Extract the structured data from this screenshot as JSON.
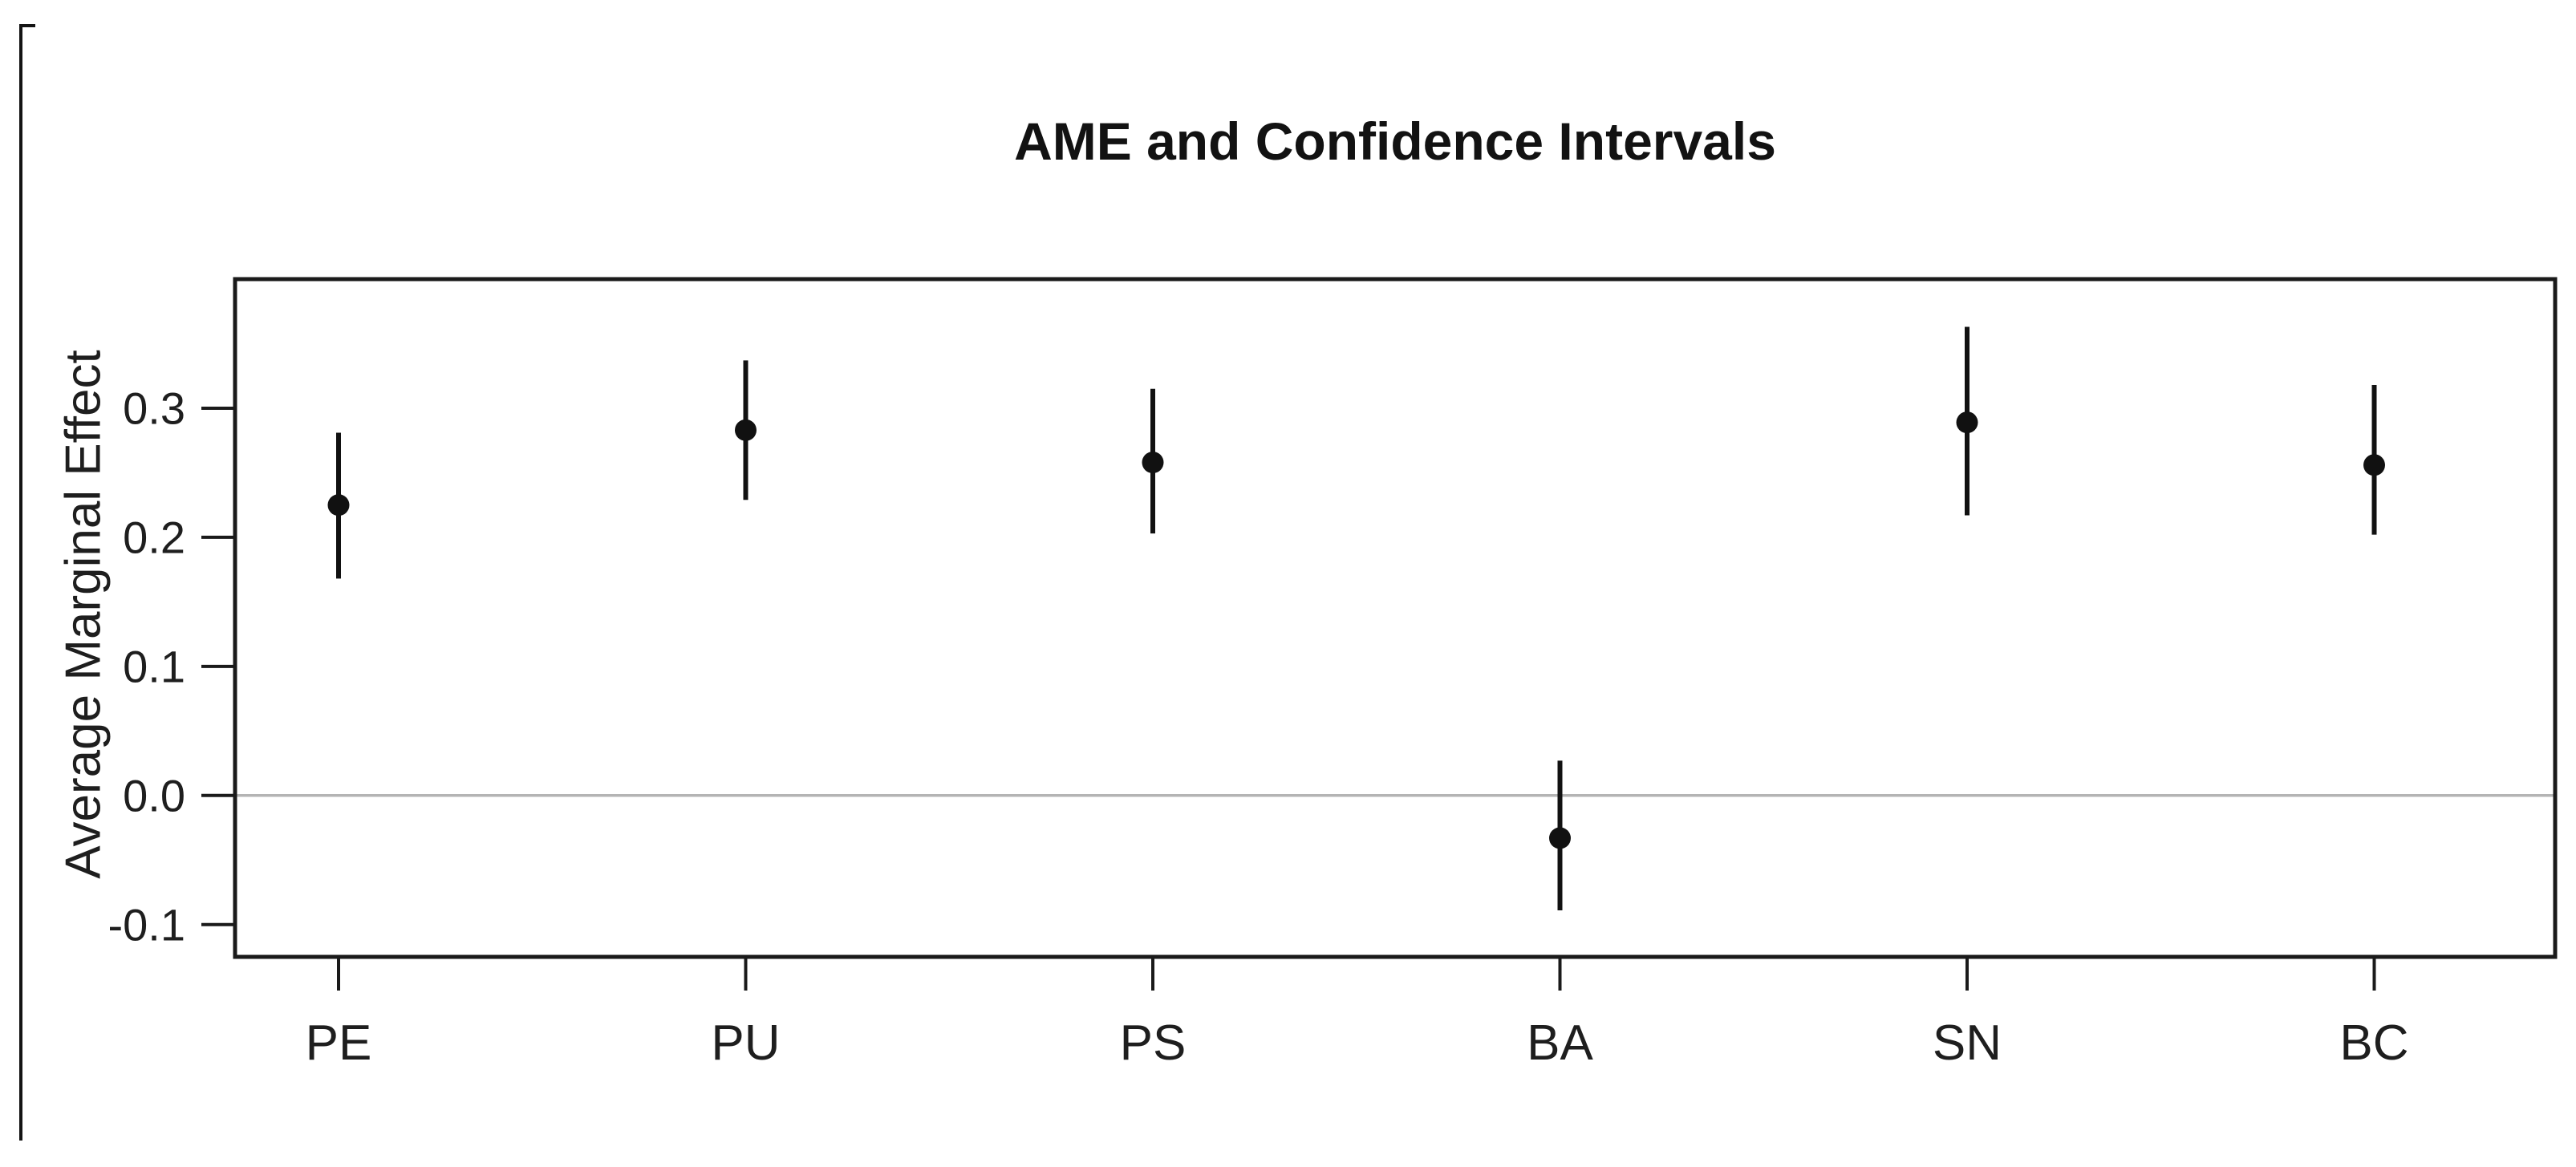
{
  "title": "AME and Confidence Intervals",
  "chart_data": {
    "type": "scatter",
    "subtype": "point-range-errorbar",
    "title": "AME and Confidence Intervals",
    "xlabel": "",
    "ylabel": "Average Marginal Effect",
    "categories": [
      "PE",
      "PU",
      "PS",
      "BA",
      "SN",
      "BC"
    ],
    "points": [
      {
        "label": "PE",
        "ame": 0.225,
        "ci_low": 0.168,
        "ci_high": 0.281
      },
      {
        "label": "PU",
        "ame": 0.283,
        "ci_low": 0.229,
        "ci_high": 0.337
      },
      {
        "label": "PS",
        "ame": 0.258,
        "ci_low": 0.203,
        "ci_high": 0.315
      },
      {
        "label": "BA",
        "ame": -0.033,
        "ci_low": -0.089,
        "ci_high": 0.027
      },
      {
        "label": "SN",
        "ame": 0.289,
        "ci_low": 0.217,
        "ci_high": 0.363
      },
      {
        "label": "BC",
        "ame": 0.256,
        "ci_low": 0.202,
        "ci_high": 0.318
      }
    ],
    "yticks": [
      {
        "label": "0.3",
        "value": 0.3
      },
      {
        "label": "0.2",
        "value": 0.2
      },
      {
        "label": "0.1",
        "value": 0.1
      },
      {
        "label": "0.0",
        "value": 0.0
      },
      {
        "label": "-0.1",
        "value": -0.1
      }
    ],
    "ylim": [
      -0.125,
      0.4
    ],
    "grid": "zero-reference-line-only",
    "legend": "none",
    "colors": {
      "marker": "#111111",
      "ci_line": "#111111",
      "frame": "#1a1a1a",
      "zero_line": "#b4b4b4",
      "text": "#1e1e1e",
      "background": "#ffffff"
    }
  }
}
